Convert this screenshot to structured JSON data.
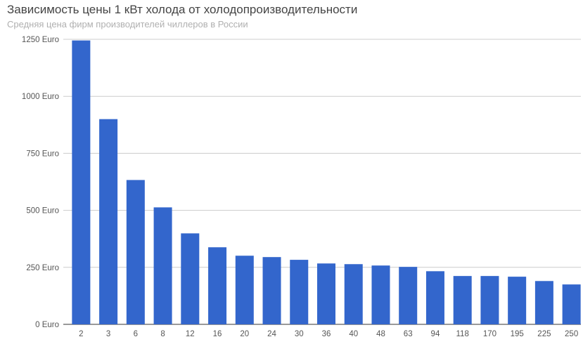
{
  "chart_data": {
    "type": "bar",
    "title": "Зависимость  цены 1 кВт холода от холодопроизводительности",
    "subtitle": "Средняя цена фирм производителей чиллеров в России",
    "xlabel": "",
    "ylabel": "",
    "categories": [
      "2",
      "3",
      "6",
      "8",
      "12",
      "16",
      "20",
      "24",
      "30",
      "36",
      "40",
      "48",
      "63",
      "94",
      "118",
      "170",
      "195",
      "225",
      "250"
    ],
    "values": [
      1245,
      900,
      633,
      513,
      399,
      338,
      301,
      295,
      283,
      267,
      264,
      258,
      252,
      233,
      212,
      212,
      209,
      190,
      175
    ],
    "ylim": [
      0,
      1250
    ],
    "yticks": [
      0,
      250,
      500,
      750,
      1000,
      1250
    ],
    "ytick_labels": [
      "0 Euro",
      "250 Euro",
      "500 Euro",
      "750 Euro",
      "1000 Euro",
      "1250 Euro"
    ],
    "grid": true,
    "bar_color": "#3366cc"
  }
}
